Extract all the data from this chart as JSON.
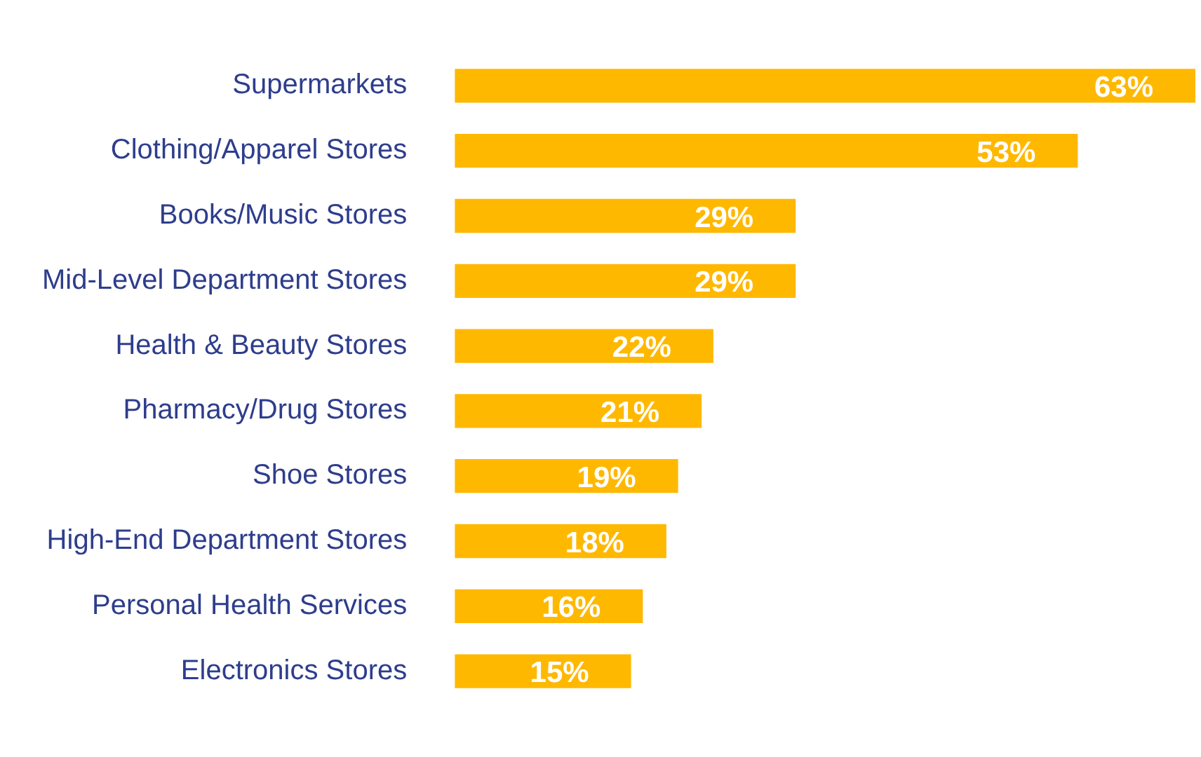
{
  "chart_data": {
    "type": "bar",
    "orientation": "horizontal",
    "categories": [
      "Supermarkets",
      "Clothing/Apparel Stores",
      "Books/Music Stores",
      "Mid-Level Department Stores",
      "Health & Beauty Stores",
      "Pharmacy/Drug Stores",
      "Shoe Stores",
      "High-End Department Stores",
      "Personal Health Services",
      "Electronics Stores"
    ],
    "values": [
      63,
      53,
      29,
      29,
      22,
      21,
      19,
      18,
      16,
      15
    ],
    "value_labels": [
      "63%",
      "53%",
      "29%",
      "29%",
      "22%",
      "21%",
      "19%",
      "18%",
      "16%",
      "15%"
    ],
    "color": "#ffb800",
    "xlim": [
      0,
      63
    ],
    "tick_labels": "y",
    "legend": false
  }
}
